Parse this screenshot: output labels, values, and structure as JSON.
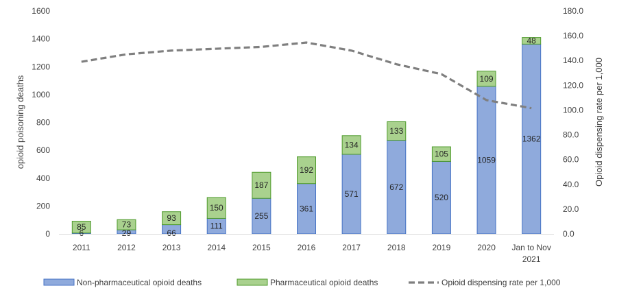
{
  "chart_data": {
    "type": "bar",
    "stacked": true,
    "categories": [
      "2011",
      "2012",
      "2013",
      "2014",
      "2015",
      "2016",
      "2017",
      "2018",
      "2019",
      "2020",
      "Jan to Nov 2021"
    ],
    "series": [
      {
        "name": "Non-pharmaceutical opioid deaths",
        "type": "bar",
        "axis": "left",
        "color": "#8faadc",
        "values": [
          6,
          29,
          66,
          111,
          255,
          361,
          571,
          672,
          520,
          1059,
          1362
        ]
      },
      {
        "name": "Pharmaceutical opioid deaths",
        "type": "bar",
        "axis": "left",
        "color": "#a9d18e",
        "values": [
          85,
          73,
          93,
          150,
          187,
          192,
          134,
          133,
          105,
          109,
          48
        ]
      },
      {
        "name": "Opioid dispensing rate per 1,000",
        "type": "line",
        "style": "dashed",
        "axis": "right",
        "color": "#7f7f7f",
        "values": [
          139,
          145,
          148,
          149.5,
          151,
          154.5,
          148,
          137,
          129,
          108,
          101.5
        ]
      }
    ],
    "ylabel": "opioid poisoning deaths",
    "y2label": "Opioid dispensing rate per 1,000",
    "ylim": [
      0,
      1600
    ],
    "y2lim": [
      0,
      180
    ],
    "yticks": [
      "0",
      "200",
      "400",
      "600",
      "800",
      "1000",
      "1200",
      "1400",
      "1600"
    ],
    "y2ticks": [
      "0.0",
      "20.0",
      "40.0",
      "60.0",
      "80.0",
      "100.0",
      "120.0",
      "140.0",
      "160.0",
      "180.0"
    ],
    "grid": false,
    "legend_position": "bottom"
  }
}
